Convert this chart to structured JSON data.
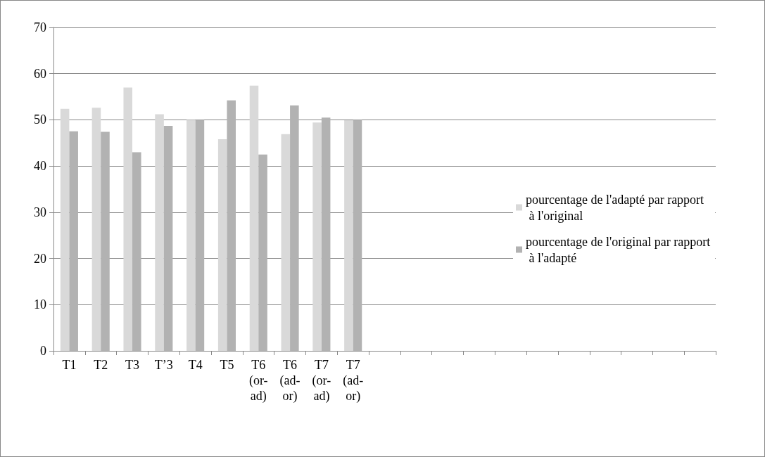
{
  "chart_data": {
    "type": "bar",
    "categories": [
      "T1",
      "T2",
      "T3",
      "T’3",
      "T4",
      "T5",
      "T6 (or-ad)",
      "T6 (ad-or)",
      "T7 (or-ad)",
      "T7 (ad-or)",
      null,
      null,
      null,
      null,
      null,
      null,
      null,
      null,
      null,
      null,
      null
    ],
    "series": [
      {
        "name": "pourcentage de l'adapté par rapport à l'original",
        "color": "#d9d9d9",
        "values": [
          52.4,
          52.6,
          57.0,
          51.2,
          50.0,
          45.8,
          57.4,
          46.9,
          49.4,
          49.9,
          null,
          null,
          null,
          null,
          null,
          null,
          null,
          null,
          null,
          null,
          null
        ]
      },
      {
        "name": "pourcentage de l'original par rapport à l'adapté",
        "color": "#b2b2b2",
        "values": [
          47.5,
          47.4,
          43.0,
          48.7,
          50.0,
          54.2,
          42.5,
          53.1,
          50.5,
          50.0,
          null,
          null,
          null,
          null,
          null,
          null,
          null,
          null,
          null,
          null,
          null
        ]
      }
    ],
    "ylim": [
      0,
      70
    ],
    "yticks": [
      0,
      10,
      20,
      30,
      40,
      50,
      60,
      70
    ],
    "grid": "y",
    "legend": "right"
  }
}
